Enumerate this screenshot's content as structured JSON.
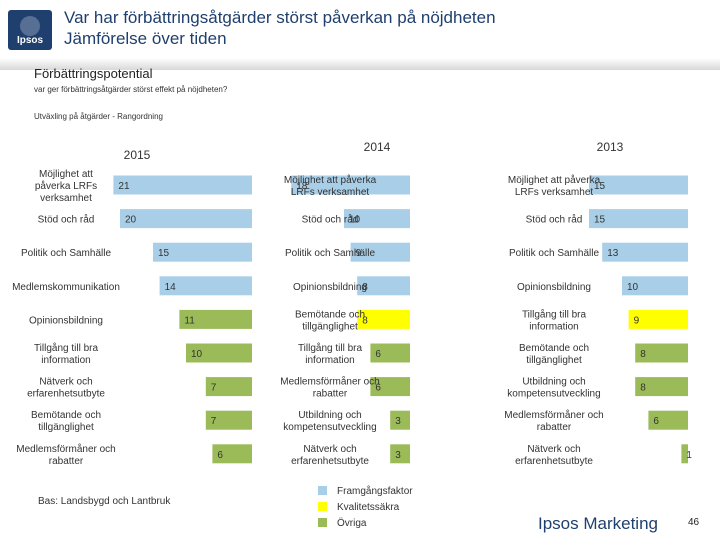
{
  "header": {
    "title_line1": "Var har förbättringsåtgärder störst påverkan på nöjdheten",
    "title_line2": "Jämförelse över tiden",
    "logo_text": "Ipsos"
  },
  "section_title": "Förbättringspotential",
  "question": "var ger förbättringsåtgärder störst effekt på nöjdheten?",
  "subtitle": "Utväxling på åtgärder - Rangordning",
  "chart_data": {
    "type": "bar",
    "orientation": "horizontal",
    "value_scale_max": 21,
    "categories_meaning": "Framgångsfaktor / Kvalitetssäkra / Övriga",
    "colors": {
      "Framgångsfaktor": "#a9cfe8",
      "Kvalitetssäkra": "#ffff00",
      "Övriga": "#9bbb59"
    },
    "panels": [
      {
        "title": "2015",
        "rows": [
          {
            "label": "Möjlighet att påverka LRFs verksamhet",
            "value": 21,
            "group": "Framgångsfaktor"
          },
          {
            "label": "Stöd och råd",
            "value": 20,
            "group": "Framgångsfaktor"
          },
          {
            "label": "Politik och Samhälle",
            "value": 15,
            "group": "Framgångsfaktor"
          },
          {
            "label": "Medlemskommunikation",
            "value": 14,
            "group": "Framgångsfaktor"
          },
          {
            "label": "Opinionsbildning",
            "value": 11,
            "group": "Övriga"
          },
          {
            "label": "Tillgång till bra information",
            "value": 10,
            "group": "Övriga"
          },
          {
            "label": "Nätverk och erfarenhetsutbyte",
            "value": 7,
            "group": "Övriga"
          },
          {
            "label": "Bemötande och tillgänglighet",
            "value": 7,
            "group": "Övriga"
          },
          {
            "label": "Medlemsförmåner och rabatter",
            "value": 6,
            "group": "Övriga"
          }
        ]
      },
      {
        "title": "2014",
        "rows": [
          {
            "label": "Möjlighet att påverka LRFs verksamhet",
            "value": 18,
            "group": "Framgångsfaktor"
          },
          {
            "label": "Stöd och råd",
            "value": 10,
            "group": "Framgångsfaktor"
          },
          {
            "label": "Politik och Samhälle",
            "value": 9,
            "group": "Framgångsfaktor"
          },
          {
            "label": "Opinionsbildning",
            "value": 8,
            "group": "Framgångsfaktor"
          },
          {
            "label": "Bemötande och tillgänglighet",
            "value": 8,
            "group": "Kvalitetssäkra"
          },
          {
            "label": "Tillgång till bra information",
            "value": 6,
            "group": "Övriga"
          },
          {
            "label": "Medlemsförmåner och rabatter",
            "value": 6,
            "group": "Övriga"
          },
          {
            "label": "Utbildning och kompetensutveckling",
            "value": 3,
            "group": "Övriga"
          },
          {
            "label": "Nätverk och erfarenhetsutbyte",
            "value": 3,
            "group": "Övriga"
          }
        ]
      },
      {
        "title": "2013",
        "rows": [
          {
            "label": "Möjlighet att påverka LRFs verksamhet",
            "value": 15,
            "group": "Framgångsfaktor"
          },
          {
            "label": "Stöd och råd",
            "value": 15,
            "group": "Framgångsfaktor"
          },
          {
            "label": "Politik och Samhälle",
            "value": 13,
            "group": "Framgångsfaktor"
          },
          {
            "label": "Opinionsbildning",
            "value": 10,
            "group": "Framgångsfaktor"
          },
          {
            "label": "Tillgång till bra information",
            "value": 9,
            "group": "Kvalitetssäkra"
          },
          {
            "label": "Bemötande och tillgänglighet",
            "value": 8,
            "group": "Övriga"
          },
          {
            "label": "Utbildning och kompetensutveckling",
            "value": 8,
            "group": "Övriga"
          },
          {
            "label": "Medlemsförmåner och rabatter",
            "value": 6,
            "group": "Övriga"
          },
          {
            "label": "Nätverk och erfarenhetsutbyte",
            "value": 1,
            "group": "Övriga"
          }
        ]
      }
    ],
    "legend": [
      "Framgångsfaktor",
      "Kvalitetssäkra",
      "Övriga"
    ]
  },
  "footer": {
    "base_note": "Bas: Landsbygd och Lantbruk",
    "brand": "Ipsos Marketing",
    "page_number": "46"
  }
}
